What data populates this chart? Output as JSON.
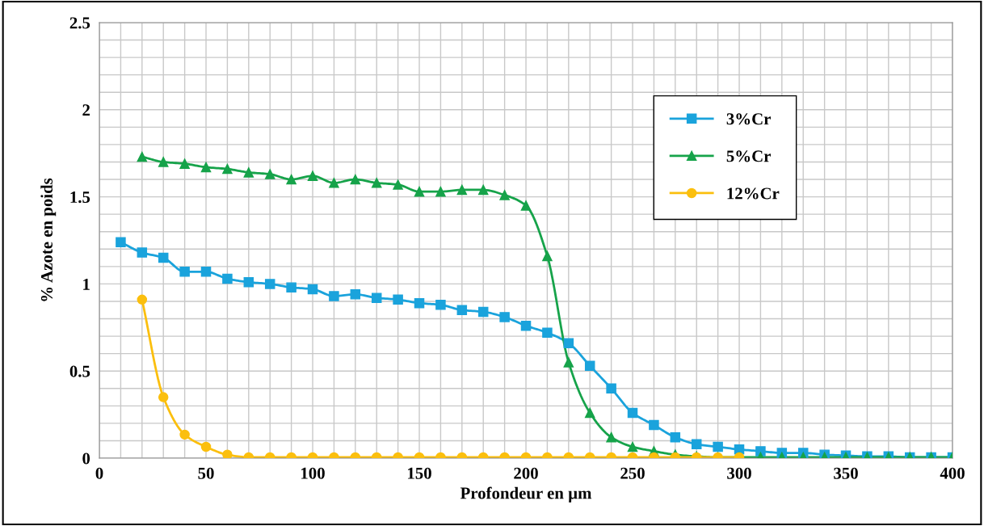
{
  "chart_data": {
    "type": "line",
    "xlabel": "Profondeur en µm",
    "ylabel": "% Azote en poids",
    "xlim": [
      0,
      400
    ],
    "ylim": [
      0,
      2.5
    ],
    "xticks": [
      0,
      {
        "value": 10,
        "label": null
      },
      {
        "value": 20,
        "label": null
      },
      {
        "value": 30,
        "label": null
      },
      {
        "value": 40,
        "label": null
      },
      50,
      {
        "value": 60,
        "label": null
      },
      {
        "value": 70,
        "label": null
      },
      {
        "value": 80,
        "label": null
      },
      {
        "value": 90,
        "label": null
      },
      100,
      {
        "value": 110,
        "label": null
      },
      {
        "value": 120,
        "label": null
      },
      {
        "value": 130,
        "label": null
      },
      {
        "value": 140,
        "label": null
      },
      150,
      {
        "value": 160,
        "label": null
      },
      {
        "value": 170,
        "label": null
      },
      {
        "value": 180,
        "label": null
      },
      {
        "value": 190,
        "label": null
      },
      200,
      {
        "value": 210,
        "label": null
      },
      {
        "value": 220,
        "label": null
      },
      {
        "value": 230,
        "label": null
      },
      {
        "value": 240,
        "label": null
      },
      250,
      {
        "value": 260,
        "label": null
      },
      {
        "value": 270,
        "label": null
      },
      {
        "value": 280,
        "label": null
      },
      {
        "value": 290,
        "label": null
      },
      300,
      {
        "value": 310,
        "label": null
      },
      {
        "value": 320,
        "label": null
      },
      {
        "value": 330,
        "label": null
      },
      {
        "value": 340,
        "label": null
      },
      350,
      {
        "value": 360,
        "label": null
      },
      {
        "value": 370,
        "label": null
      },
      {
        "value": 380,
        "label": null
      },
      {
        "value": 390,
        "label": null
      },
      400
    ],
    "yticks": [
      0,
      {
        "value": 0.1,
        "label": null
      },
      {
        "value": 0.2,
        "label": null
      },
      {
        "value": 0.3,
        "label": null
      },
      {
        "value": 0.4,
        "label": null
      },
      0.5,
      {
        "value": 0.6,
        "label": null
      },
      {
        "value": 0.7,
        "label": null
      },
      {
        "value": 0.8,
        "label": null
      },
      {
        "value": 0.9,
        "label": null
      },
      1,
      {
        "value": 1.1,
        "label": null
      },
      {
        "value": 1.2,
        "label": null
      },
      {
        "value": 1.3,
        "label": null
      },
      {
        "value": 1.4,
        "label": null
      },
      1.5,
      {
        "value": 1.6,
        "label": null
      },
      {
        "value": 1.7,
        "label": null
      },
      {
        "value": 1.8,
        "label": null
      },
      {
        "value": 1.9,
        "label": null
      },
      2,
      {
        "value": 2.1,
        "label": null
      },
      {
        "value": 2.2,
        "label": null
      },
      {
        "value": 2.3,
        "label": null
      },
      {
        "value": 2.4,
        "label": null
      },
      2.5
    ],
    "grid": true,
    "legend": "right",
    "line_style": "solid",
    "series": [
      {
        "name": "3%Cr",
        "color": "#1aa3dc",
        "marker": "square",
        "x": [
          10,
          20,
          30,
          40,
          50,
          60,
          70,
          80,
          90,
          100,
          110,
          120,
          130,
          140,
          150,
          160,
          170,
          180,
          190,
          200,
          210,
          220,
          230,
          240,
          250,
          260,
          270,
          280,
          290,
          300,
          310,
          320,
          330,
          340,
          350,
          360,
          370,
          380,
          390,
          400
        ],
        "values": [
          1.24,
          1.18,
          1.15,
          1.07,
          1.07,
          1.03,
          1.01,
          1.0,
          0.98,
          0.97,
          0.93,
          0.94,
          0.92,
          0.91,
          0.89,
          0.88,
          0.85,
          0.84,
          0.81,
          0.76,
          0.72,
          0.66,
          0.53,
          0.4,
          0.26,
          0.19,
          0.12,
          0.08,
          0.065,
          0.05,
          0.04,
          0.03,
          0.03,
          0.02,
          0.015,
          0.01,
          0.01,
          0.005,
          0.005,
          0.005
        ]
      },
      {
        "name": "5%Cr",
        "color": "#16a34a",
        "marker": "triangle",
        "x": [
          20,
          30,
          40,
          50,
          60,
          70,
          80,
          90,
          100,
          110,
          120,
          130,
          140,
          150,
          160,
          170,
          180,
          190,
          200,
          210,
          220,
          230,
          240,
          250,
          260,
          270,
          280,
          290,
          300,
          310,
          320,
          330,
          340,
          350,
          360,
          370,
          380,
          390,
          400
        ],
        "values": [
          1.73,
          1.7,
          1.69,
          1.67,
          1.66,
          1.64,
          1.63,
          1.6,
          1.62,
          1.58,
          1.6,
          1.58,
          1.57,
          1.53,
          1.53,
          1.54,
          1.54,
          1.51,
          1.45,
          1.16,
          0.55,
          0.26,
          0.12,
          0.065,
          0.04,
          0.02,
          0.01,
          0.005,
          0.005,
          0.005,
          0.005,
          0.005,
          0.005,
          0.005,
          0.005,
          0.005,
          0.005,
          0.005,
          0.005
        ]
      },
      {
        "name": "12%Cr",
        "color": "#fbbf0e",
        "marker": "circle",
        "x": [
          20,
          30,
          40,
          50,
          60,
          70,
          80,
          90,
          100,
          110,
          120,
          130,
          140,
          150,
          160,
          170,
          180,
          190,
          200,
          210,
          220,
          230,
          240,
          250,
          260,
          270,
          280,
          290,
          300
        ],
        "values": [
          0.91,
          0.35,
          0.135,
          0.065,
          0.02,
          0.005,
          0.005,
          0.005,
          0.005,
          0.005,
          0.005,
          0.005,
          0.005,
          0.005,
          0.005,
          0.005,
          0.005,
          0.005,
          0.005,
          0.005,
          0.005,
          0.005,
          0.005,
          0.005,
          0.005,
          0.005,
          0.005,
          0.005,
          0.005
        ]
      }
    ]
  }
}
